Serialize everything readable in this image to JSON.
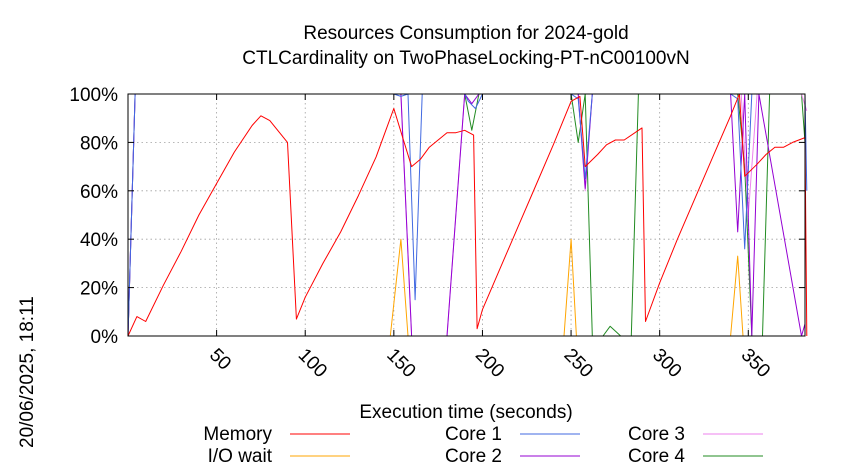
{
  "side_label": "20/06/2025, 18:11",
  "chart_data": {
    "type": "line",
    "title": "Resources Consumption for 2024-gold",
    "subtitle": "CTLCardinality on TwoPhaseLocking-PT-nC00100vN",
    "xlabel": "Execution time (seconds)",
    "ylabel": "",
    "xlim": [
      0,
      382
    ],
    "ylim": [
      0,
      100
    ],
    "x_ticks": [
      50,
      100,
      150,
      200,
      250,
      300,
      350
    ],
    "y_ticks": [
      0,
      20,
      40,
      60,
      80,
      100
    ],
    "y_tick_labels": [
      "0%",
      "20%",
      "40%",
      "60%",
      "80%",
      "100%"
    ],
    "grid": true,
    "legend_position": "bottom",
    "series": [
      {
        "name": "Memory",
        "color": "#ff0000",
        "points": [
          [
            0,
            0
          ],
          [
            5,
            8
          ],
          [
            10,
            6
          ],
          [
            20,
            21
          ],
          [
            30,
            35
          ],
          [
            40,
            50
          ],
          [
            50,
            63
          ],
          [
            60,
            76
          ],
          [
            70,
            87
          ],
          [
            75,
            91
          ],
          [
            80,
            89
          ],
          [
            90,
            80
          ],
          [
            95,
            7
          ],
          [
            100,
            16
          ],
          [
            110,
            30
          ],
          [
            120,
            43
          ],
          [
            130,
            58
          ],
          [
            140,
            74
          ],
          [
            150,
            94
          ],
          [
            160,
            70
          ],
          [
            165,
            73
          ],
          [
            170,
            78
          ],
          [
            180,
            84
          ],
          [
            185,
            84
          ],
          [
            190,
            85
          ],
          [
            195,
            83
          ],
          [
            197,
            3
          ],
          [
            200,
            11
          ],
          [
            210,
            28
          ],
          [
            220,
            45
          ],
          [
            230,
            62
          ],
          [
            240,
            79
          ],
          [
            250,
            97
          ],
          [
            255,
            99
          ],
          [
            258,
            70
          ],
          [
            265,
            75
          ],
          [
            270,
            79
          ],
          [
            275,
            81
          ],
          [
            280,
            81
          ],
          [
            290,
            86
          ],
          [
            292,
            6
          ],
          [
            300,
            22
          ],
          [
            310,
            40
          ],
          [
            320,
            57
          ],
          [
            330,
            74
          ],
          [
            340,
            91
          ],
          [
            345,
            100
          ],
          [
            348,
            66
          ],
          [
            355,
            71
          ],
          [
            360,
            75
          ],
          [
            365,
            78
          ],
          [
            370,
            78
          ],
          [
            375,
            80
          ],
          [
            382,
            82
          ],
          [
            383,
            0
          ]
        ]
      },
      {
        "name": "I/O wait",
        "color": "#ffa500",
        "points": [
          [
            148,
            0
          ],
          [
            154,
            40
          ],
          [
            158,
            0
          ],
          [
            192,
            0
          ],
          [
            246,
            0
          ],
          [
            250,
            40
          ],
          [
            253,
            0
          ],
          [
            285,
            0
          ],
          [
            340,
            0
          ],
          [
            344,
            33
          ],
          [
            347,
            0
          ]
        ]
      },
      {
        "name": "Core 1",
        "color": "#4169e1",
        "points": [
          [
            0,
            0
          ],
          [
            4,
            100
          ],
          [
            150,
            100
          ],
          [
            154,
            99
          ],
          [
            158,
            100
          ],
          [
            162,
            15
          ],
          [
            166,
            100
          ],
          [
            190,
            100
          ],
          [
            192,
            97
          ],
          [
            196,
            94
          ],
          [
            200,
            100
          ],
          [
            250,
            100
          ],
          [
            254,
            98
          ],
          [
            258,
            65
          ],
          [
            262,
            100
          ],
          [
            340,
            100
          ],
          [
            344,
            98
          ],
          [
            348,
            36
          ],
          [
            352,
            100
          ],
          [
            382,
            100
          ],
          [
            383,
            60
          ]
        ]
      },
      {
        "name": "Core 2",
        "color": "#9400d3",
        "points": [
          [
            0,
            0
          ],
          [
            4,
            100
          ],
          [
            150,
            100
          ],
          [
            154,
            100
          ],
          [
            160,
            0
          ],
          [
            170,
            0
          ],
          [
            180,
            0
          ],
          [
            190,
            100
          ],
          [
            194,
            96
          ],
          [
            198,
            100
          ],
          [
            250,
            100
          ],
          [
            254,
            100
          ],
          [
            258,
            61
          ],
          [
            262,
            100
          ],
          [
            340,
            100
          ],
          [
            344,
            43
          ],
          [
            348,
            100
          ],
          [
            352,
            0
          ],
          [
            356,
            100
          ],
          [
            380,
            0
          ],
          [
            382,
            5
          ]
        ]
      },
      {
        "name": "Core 3",
        "color": "#ee82ee",
        "points": [
          [
            0,
            0
          ],
          [
            4,
            100
          ],
          [
            150,
            100
          ],
          [
            154,
            100
          ],
          [
            160,
            0
          ],
          [
            170,
            0
          ],
          [
            180,
            0
          ],
          [
            190,
            100
          ],
          [
            250,
            100
          ],
          [
            254,
            100
          ],
          [
            258,
            60
          ],
          [
            262,
            100
          ],
          [
            340,
            100
          ],
          [
            346,
            100
          ],
          [
            350,
            50
          ],
          [
            355,
            100
          ],
          [
            380,
            100
          ],
          [
            383,
            93
          ]
        ]
      },
      {
        "name": "Core 4",
        "color": "#228b22",
        "points": [
          [
            0,
            0
          ],
          [
            4,
            100
          ],
          [
            190,
            100
          ],
          [
            194,
            85
          ],
          [
            198,
            100
          ],
          [
            250,
            100
          ],
          [
            254,
            80
          ],
          [
            258,
            100
          ],
          [
            262,
            0
          ],
          [
            268,
            0
          ],
          [
            272,
            4
          ],
          [
            278,
            0
          ],
          [
            284,
            0
          ],
          [
            288,
            100
          ],
          [
            340,
            100
          ],
          [
            344,
            100
          ],
          [
            348,
            70
          ],
          [
            352,
            0
          ],
          [
            358,
            0
          ],
          [
            362,
            100
          ],
          [
            380,
            100
          ],
          [
            382,
            80
          ]
        ]
      }
    ]
  }
}
